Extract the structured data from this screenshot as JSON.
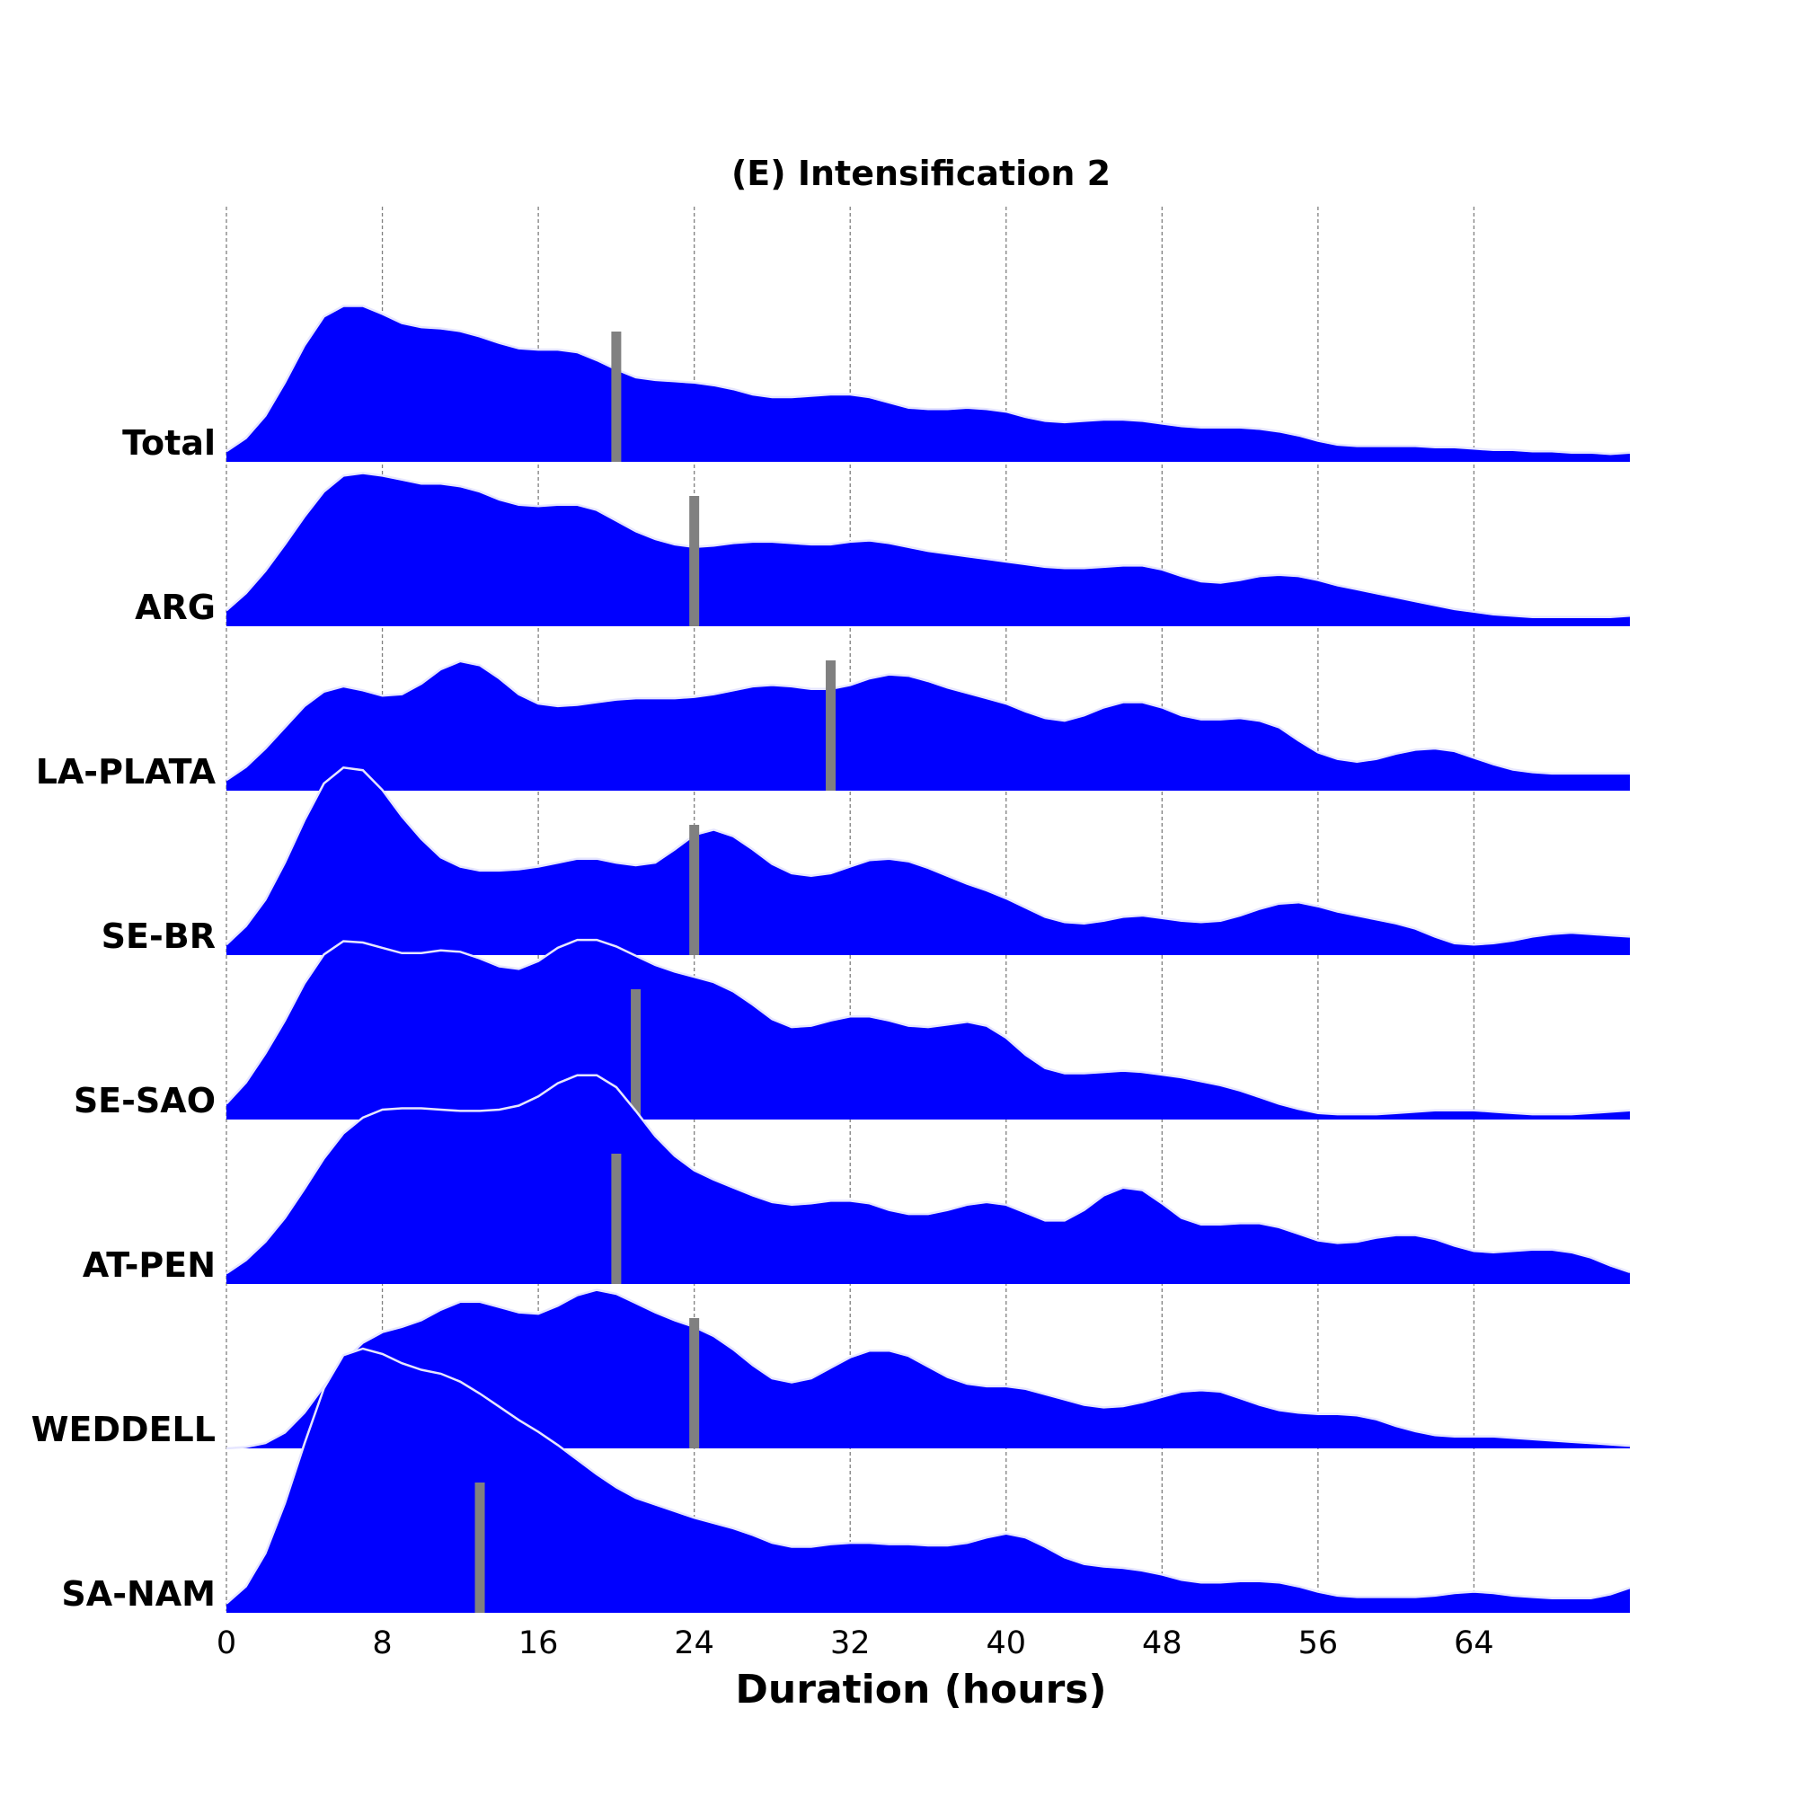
{
  "chart_data": {
    "type": "area",
    "title": "(E) Intensification 2",
    "xlabel": "Duration (hours)",
    "ylabel": "",
    "xlim": [
      0,
      72
    ],
    "xticks": [
      0,
      8,
      16,
      24,
      32,
      40,
      48,
      56,
      64
    ],
    "grid": "vertical dashed",
    "colors": {
      "fill": "#0000ff",
      "outline": "#e6e6ff",
      "median_marker": "#808080"
    },
    "x": [
      0,
      1,
      2,
      3,
      4,
      5,
      6,
      7,
      8,
      9,
      10,
      11,
      12,
      13,
      14,
      15,
      16,
      17,
      18,
      19,
      20,
      21,
      22,
      23,
      24,
      25,
      26,
      27,
      28,
      29,
      30,
      31,
      32,
      33,
      34,
      35,
      36,
      37,
      38,
      39,
      40,
      41,
      42,
      43,
      44,
      45,
      46,
      47,
      48,
      49,
      50,
      51,
      52,
      53,
      54,
      55,
      56,
      57,
      58,
      59,
      60,
      61,
      62,
      63,
      64,
      65,
      66,
      67,
      68,
      69,
      70,
      71,
      72
    ],
    "series": [
      {
        "name": "Total",
        "median": 20,
        "values": [
          0.08,
          0.18,
          0.35,
          0.6,
          0.88,
          1.1,
          1.18,
          1.18,
          1.12,
          1.05,
          1.02,
          1.01,
          0.99,
          0.95,
          0.9,
          0.86,
          0.85,
          0.85,
          0.83,
          0.77,
          0.7,
          0.64,
          0.62,
          0.61,
          0.6,
          0.58,
          0.55,
          0.51,
          0.49,
          0.49,
          0.5,
          0.51,
          0.51,
          0.49,
          0.45,
          0.41,
          0.4,
          0.4,
          0.41,
          0.4,
          0.38,
          0.34,
          0.31,
          0.3,
          0.31,
          0.32,
          0.32,
          0.31,
          0.29,
          0.27,
          0.26,
          0.26,
          0.26,
          0.25,
          0.23,
          0.2,
          0.16,
          0.13,
          0.12,
          0.12,
          0.12,
          0.12,
          0.11,
          0.11,
          0.1,
          0.09,
          0.09,
          0.08,
          0.08,
          0.07,
          0.07,
          0.06,
          0.07
        ]
      },
      {
        "name": "ARG",
        "median": 24,
        "values": [
          0.12,
          0.25,
          0.42,
          0.62,
          0.83,
          1.02,
          1.14,
          1.16,
          1.14,
          1.11,
          1.08,
          1.08,
          1.06,
          1.02,
          0.96,
          0.92,
          0.91,
          0.92,
          0.92,
          0.88,
          0.8,
          0.72,
          0.66,
          0.62,
          0.6,
          0.61,
          0.63,
          0.64,
          0.64,
          0.63,
          0.62,
          0.62,
          0.64,
          0.65,
          0.63,
          0.6,
          0.57,
          0.55,
          0.53,
          0.51,
          0.49,
          0.47,
          0.45,
          0.44,
          0.44,
          0.45,
          0.46,
          0.46,
          0.43,
          0.38,
          0.34,
          0.33,
          0.35,
          0.38,
          0.39,
          0.38,
          0.35,
          0.31,
          0.28,
          0.25,
          0.22,
          0.19,
          0.16,
          0.13,
          0.11,
          0.09,
          0.08,
          0.07,
          0.07,
          0.07,
          0.07,
          0.07,
          0.08
        ]
      },
      {
        "name": "LA-PLATA",
        "median": 31,
        "values": [
          0.08,
          0.18,
          0.32,
          0.48,
          0.64,
          0.75,
          0.79,
          0.76,
          0.72,
          0.73,
          0.81,
          0.92,
          0.98,
          0.95,
          0.85,
          0.73,
          0.66,
          0.64,
          0.65,
          0.67,
          0.69,
          0.7,
          0.7,
          0.7,
          0.71,
          0.73,
          0.76,
          0.79,
          0.8,
          0.79,
          0.77,
          0.77,
          0.8,
          0.85,
          0.88,
          0.87,
          0.83,
          0.78,
          0.74,
          0.7,
          0.66,
          0.6,
          0.55,
          0.53,
          0.57,
          0.63,
          0.67,
          0.67,
          0.63,
          0.57,
          0.54,
          0.54,
          0.55,
          0.53,
          0.48,
          0.38,
          0.29,
          0.24,
          0.22,
          0.24,
          0.28,
          0.31,
          0.32,
          0.3,
          0.25,
          0.2,
          0.16,
          0.14,
          0.13,
          0.13,
          0.13,
          0.13,
          0.13
        ]
      },
      {
        "name": "SE-BR",
        "median": 24,
        "values": [
          0.08,
          0.22,
          0.42,
          0.7,
          1.02,
          1.3,
          1.42,
          1.4,
          1.25,
          1.05,
          0.88,
          0.74,
          0.67,
          0.64,
          0.64,
          0.65,
          0.67,
          0.7,
          0.73,
          0.73,
          0.7,
          0.68,
          0.7,
          0.8,
          0.91,
          0.95,
          0.9,
          0.8,
          0.69,
          0.62,
          0.6,
          0.62,
          0.67,
          0.72,
          0.73,
          0.71,
          0.66,
          0.6,
          0.54,
          0.49,
          0.43,
          0.36,
          0.29,
          0.25,
          0.24,
          0.26,
          0.29,
          0.3,
          0.28,
          0.26,
          0.25,
          0.26,
          0.3,
          0.35,
          0.39,
          0.4,
          0.37,
          0.33,
          0.3,
          0.27,
          0.24,
          0.2,
          0.14,
          0.09,
          0.08,
          0.09,
          0.11,
          0.14,
          0.16,
          0.17,
          0.16,
          0.15,
          0.14
        ]
      },
      {
        "name": "SE-SAO",
        "median": 21,
        "values": [
          0.12,
          0.28,
          0.5,
          0.75,
          1.03,
          1.25,
          1.35,
          1.34,
          1.3,
          1.26,
          1.26,
          1.28,
          1.27,
          1.22,
          1.16,
          1.14,
          1.2,
          1.3,
          1.36,
          1.36,
          1.31,
          1.24,
          1.17,
          1.12,
          1.08,
          1.04,
          0.97,
          0.87,
          0.76,
          0.7,
          0.71,
          0.75,
          0.78,
          0.78,
          0.75,
          0.71,
          0.7,
          0.72,
          0.74,
          0.71,
          0.62,
          0.49,
          0.39,
          0.35,
          0.35,
          0.36,
          0.37,
          0.36,
          0.34,
          0.32,
          0.29,
          0.26,
          0.22,
          0.17,
          0.12,
          0.08,
          0.05,
          0.04,
          0.04,
          0.04,
          0.05,
          0.06,
          0.07,
          0.07,
          0.07,
          0.06,
          0.05,
          0.04,
          0.04,
          0.04,
          0.05,
          0.06,
          0.07
        ]
      },
      {
        "name": "AT-PEN",
        "median": 20,
        "values": [
          0.08,
          0.18,
          0.32,
          0.5,
          0.72,
          0.95,
          1.14,
          1.26,
          1.32,
          1.33,
          1.33,
          1.32,
          1.31,
          1.31,
          1.32,
          1.35,
          1.42,
          1.52,
          1.58,
          1.58,
          1.49,
          1.31,
          1.12,
          0.97,
          0.86,
          0.79,
          0.73,
          0.67,
          0.62,
          0.6,
          0.61,
          0.63,
          0.63,
          0.61,
          0.56,
          0.53,
          0.53,
          0.56,
          0.6,
          0.62,
          0.6,
          0.54,
          0.48,
          0.48,
          0.56,
          0.67,
          0.73,
          0.71,
          0.61,
          0.5,
          0.45,
          0.45,
          0.46,
          0.46,
          0.43,
          0.38,
          0.33,
          0.31,
          0.32,
          0.35,
          0.37,
          0.37,
          0.34,
          0.29,
          0.25,
          0.24,
          0.25,
          0.26,
          0.26,
          0.24,
          0.2,
          0.14,
          0.09
        ]
      },
      {
        "name": "WEDDELL",
        "median": 24,
        "values": [
          0.0,
          0.01,
          0.04,
          0.12,
          0.27,
          0.47,
          0.66,
          0.8,
          0.88,
          0.92,
          0.97,
          1.05,
          1.11,
          1.11,
          1.07,
          1.03,
          1.02,
          1.08,
          1.16,
          1.2,
          1.17,
          1.1,
          1.03,
          0.97,
          0.92,
          0.85,
          0.75,
          0.63,
          0.53,
          0.5,
          0.53,
          0.61,
          0.69,
          0.74,
          0.74,
          0.7,
          0.62,
          0.54,
          0.49,
          0.47,
          0.47,
          0.45,
          0.41,
          0.37,
          0.33,
          0.31,
          0.32,
          0.35,
          0.39,
          0.43,
          0.44,
          0.43,
          0.38,
          0.33,
          0.29,
          0.27,
          0.26,
          0.26,
          0.25,
          0.22,
          0.17,
          0.13,
          0.1,
          0.09,
          0.09,
          0.09,
          0.08,
          0.07,
          0.06,
          0.05,
          0.04,
          0.03,
          0.02
        ]
      },
      {
        "name": "SA-NAM",
        "median": 13,
        "values": [
          0.07,
          0.2,
          0.45,
          0.83,
          1.28,
          1.7,
          1.95,
          2.0,
          1.96,
          1.89,
          1.84,
          1.81,
          1.75,
          1.66,
          1.56,
          1.46,
          1.37,
          1.27,
          1.16,
          1.05,
          0.95,
          0.87,
          0.82,
          0.77,
          0.72,
          0.68,
          0.64,
          0.59,
          0.53,
          0.5,
          0.5,
          0.52,
          0.53,
          0.53,
          0.52,
          0.52,
          0.51,
          0.51,
          0.53,
          0.57,
          0.6,
          0.57,
          0.5,
          0.42,
          0.37,
          0.35,
          0.34,
          0.32,
          0.29,
          0.25,
          0.23,
          0.23,
          0.24,
          0.24,
          0.23,
          0.2,
          0.16,
          0.13,
          0.12,
          0.12,
          0.12,
          0.12,
          0.13,
          0.15,
          0.16,
          0.15,
          0.13,
          0.12,
          0.11,
          0.11,
          0.11,
          0.14,
          0.19
        ]
      }
    ]
  }
}
